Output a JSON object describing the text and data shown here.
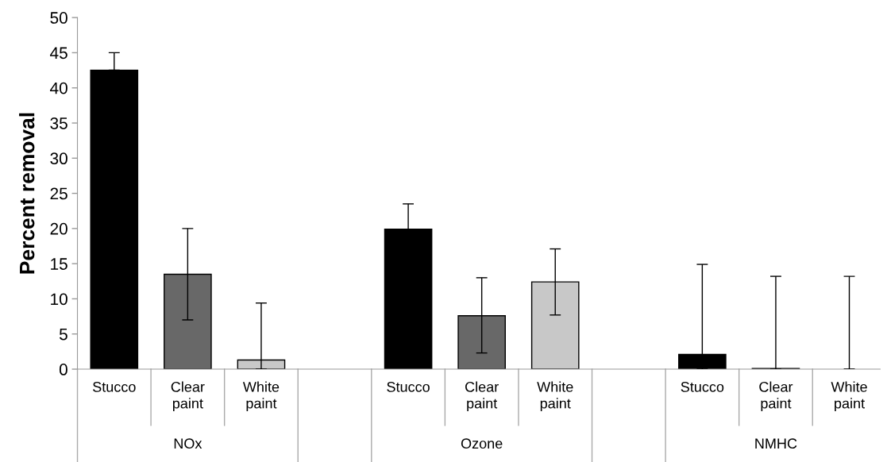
{
  "chart_data": {
    "type": "bar",
    "ylabel": "Percent removal",
    "categories": [
      "Stucco",
      "Clear\npaint",
      "White\npaint",
      null,
      "Stucco",
      "Clear\npaint",
      "White\npaint",
      null,
      "Stucco",
      "Clear\npaint",
      "White\npaint"
    ],
    "values": [
      42.5,
      13.5,
      1.3,
      null,
      19.9,
      7.6,
      12.4,
      null,
      2.1,
      0.1,
      0
    ],
    "colors": [
      "#000000",
      "#686868",
      "#c8c8c8",
      null,
      "#000000",
      "#686868",
      "#c8c8c8",
      null,
      "#000000",
      "#686868",
      null
    ],
    "errors": [
      [
        42.5,
        45
      ],
      [
        7,
        20
      ],
      [
        0,
        9.4
      ],
      null,
      [
        19.9,
        23.5
      ],
      [
        2.3,
        13.0
      ],
      [
        7.7,
        17.1
      ],
      null,
      [
        0,
        14.9
      ],
      [
        0,
        13.2
      ],
      [
        0,
        13.2
      ]
    ],
    "annotations": [
      "NOx",
      "Ozone",
      "NMHC"
    ],
    "ylim": [
      0,
      50
    ],
    "yticks": [
      0,
      5,
      10,
      15,
      20,
      25,
      30,
      35,
      40,
      45,
      50
    ],
    "grid": false,
    "legend": false
  }
}
